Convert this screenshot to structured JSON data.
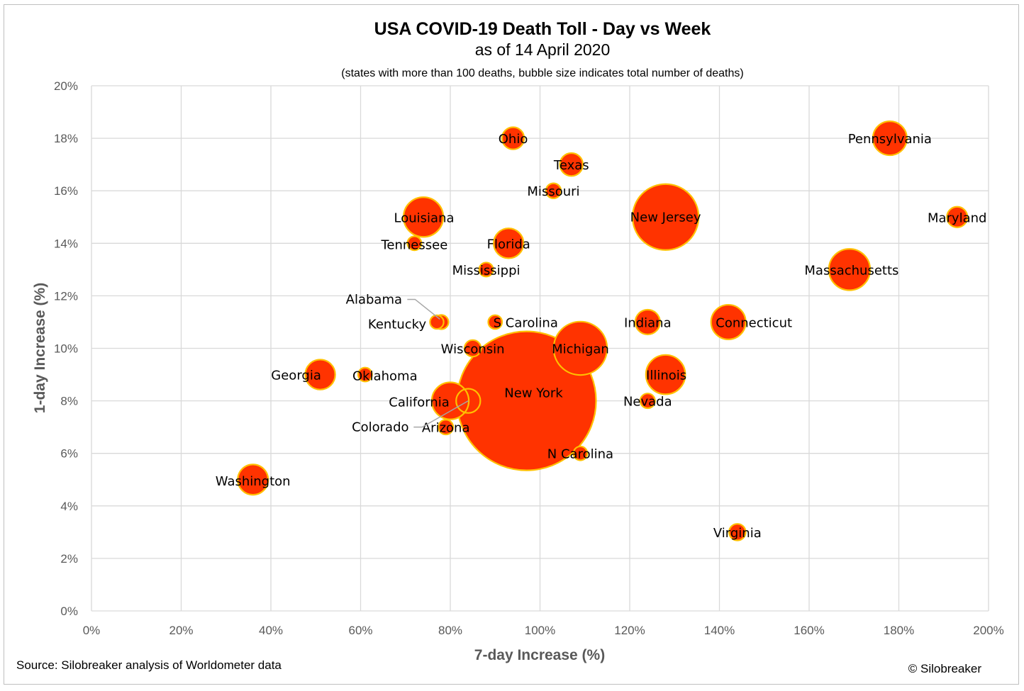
{
  "chart_data": {
    "type": "scatter",
    "bubble": true,
    "title": "USA COVID-19 Death Toll - Day vs Week",
    "subtitle": "as of 14 April 2020",
    "note": "(states with more than 100 deaths, bubble size indicates total number of deaths)",
    "xlabel": "7-day Increase (%)",
    "ylabel": "1-day Increase (%)",
    "xlim": [
      0,
      200
    ],
    "ylim": [
      0,
      20
    ],
    "x_ticks": [
      0,
      20,
      40,
      60,
      80,
      100,
      120,
      140,
      160,
      180,
      200
    ],
    "y_ticks": [
      0,
      2,
      4,
      6,
      8,
      10,
      12,
      14,
      16,
      18,
      20
    ],
    "x_tick_labels": [
      "0%",
      "20%",
      "40%",
      "60%",
      "80%",
      "100%",
      "120%",
      "140%",
      "160%",
      "180%",
      "200%"
    ],
    "y_tick_labels": [
      "0%",
      "2%",
      "4%",
      "6%",
      "8%",
      "10%",
      "12%",
      "14%",
      "16%",
      "18%",
      "20%"
    ],
    "grid": true,
    "colors": {
      "fill": "#ff3300",
      "stroke": "#ffc000",
      "grid": "#d9d9d9",
      "axis_text": "#595959"
    },
    "points": [
      {
        "label": "New York",
        "x": 97,
        "y": 8,
        "size": 10834
      },
      {
        "label": "New Jersey",
        "x": 128,
        "y": 15,
        "size": 2443
      },
      {
        "label": "Michigan",
        "x": 109,
        "y": 10,
        "size": 1602
      },
      {
        "label": "Louisiana",
        "x": 74,
        "y": 15,
        "size": 884
      },
      {
        "label": "Illinois",
        "x": 128,
        "y": 9,
        "size": 868
      },
      {
        "label": "Massachusetts",
        "x": 169,
        "y": 13,
        "size": 957
      },
      {
        "label": "Connecticut",
        "x": 142,
        "y": 11,
        "size": 671
      },
      {
        "label": "California",
        "x": 80,
        "y": 8,
        "size": 767
      },
      {
        "label": "Pennsylvania",
        "x": 178,
        "y": 18,
        "size": 647
      },
      {
        "label": "Washington",
        "x": 36,
        "y": 5,
        "size": 517
      },
      {
        "label": "Georgia",
        "x": 51,
        "y": 9,
        "size": 503
      },
      {
        "label": "Florida",
        "x": 93,
        "y": 14,
        "size": 500
      },
      {
        "label": "Indiana",
        "x": 124,
        "y": 11,
        "size": 343
      },
      {
        "label": "Maryland",
        "x": 193,
        "y": 15,
        "size": 236
      },
      {
        "label": "Texas",
        "x": 107,
        "y": 17,
        "size": 295
      },
      {
        "label": "Ohio",
        "x": 94,
        "y": 18,
        "size": 274
      },
      {
        "label": "Colorado",
        "x": 84,
        "y": 8,
        "size": 329,
        "outline_only": true
      },
      {
        "label": "Virginia",
        "x": 144,
        "y": 3,
        "size": 154
      },
      {
        "label": "Wisconsin",
        "x": 85,
        "y": 10,
        "size": 154
      },
      {
        "label": "Missouri",
        "x": 103,
        "y": 16,
        "size": 127
      },
      {
        "label": "Kentucky",
        "x": 77,
        "y": 11,
        "size": 104
      },
      {
        "label": "Nevada",
        "x": 124,
        "y": 8,
        "size": 122
      },
      {
        "label": "Mississippi",
        "x": 88,
        "y": 13,
        "size": 111
      },
      {
        "label": "Tennessee",
        "x": 72,
        "y": 14,
        "size": 110
      },
      {
        "label": "Arizona",
        "x": 79,
        "y": 7,
        "size": 122
      },
      {
        "label": "Oklahoma",
        "x": 61,
        "y": 9,
        "size": 108
      },
      {
        "label": "Alabama",
        "x": 78,
        "y": 11,
        "size": 114
      },
      {
        "label": "S Carolina",
        "x": 90,
        "y": 11,
        "size": 107
      },
      {
        "label": "N Carolina",
        "x": 109,
        "y": 6,
        "size": 108
      }
    ]
  },
  "footer": {
    "source": "Source: Silobreaker analysis of Worldometer data",
    "copyright": "© Silobreaker"
  }
}
